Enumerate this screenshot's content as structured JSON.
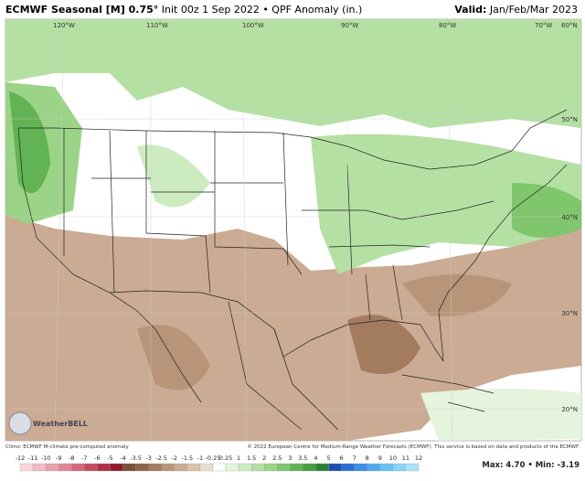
{
  "header": {
    "title": "ECMWF Seasonal [M] 0.75°",
    "subtitle": "Init 00z 1 Sep 2022 • QPF Anomaly (in.)",
    "valid_label": "Valid:",
    "valid": "Jan/Feb/Mar 2023"
  },
  "map": {
    "lon_labels": [
      "120°W",
      "110°W",
      "100°W",
      "90°W",
      "80°W",
      "70°W",
      "60°N"
    ],
    "lat_labels": [
      "50°N",
      "40°N",
      "30°N",
      "20°N"
    ],
    "logo": "WeatherBELL"
  },
  "footer": {
    "climo": "Climo: ECMWF M-climate pre-computed anomaly",
    "copyright": "© 2022 European Centre for Medium-Range Weather Forecasts (ECMWF). This service is based on data and products of the ECMWF.",
    "max_min": "Max: 4.70 • Min: -3.19"
  },
  "legend": {
    "labels": [
      -12,
      -11,
      -10,
      -9,
      -8,
      -7,
      -6,
      -5,
      -4,
      -3.5,
      -3,
      -2.5,
      -2,
      -1.5,
      -1,
      -0.25,
      0.25,
      1,
      1.5,
      2,
      2.5,
      3,
      3.5,
      4,
      5,
      6,
      7,
      8,
      9,
      10,
      11,
      12
    ],
    "colors": [
      "#f7d6dc",
      "#f1bcc6",
      "#eaa1ae",
      "#e08594",
      "#d4697b",
      "#c44c61",
      "#b02f47",
      "#8f1a2e",
      "#7a5036",
      "#8e6448",
      "#a37b5f",
      "#b89478",
      "#cbab93",
      "#dcc3ae",
      "#eaddd1",
      "#ffffff",
      "#e5f4dd",
      "#cdebc0",
      "#b5e0a3",
      "#9bd487",
      "#7fc66c",
      "#62b353",
      "#479d40",
      "#2e8131",
      "#1f4fb0",
      "#2b6fd6",
      "#3a8de8",
      "#4fa8ef",
      "#69c0f2",
      "#87d4f5",
      "#a9e3f8"
    ]
  }
}
